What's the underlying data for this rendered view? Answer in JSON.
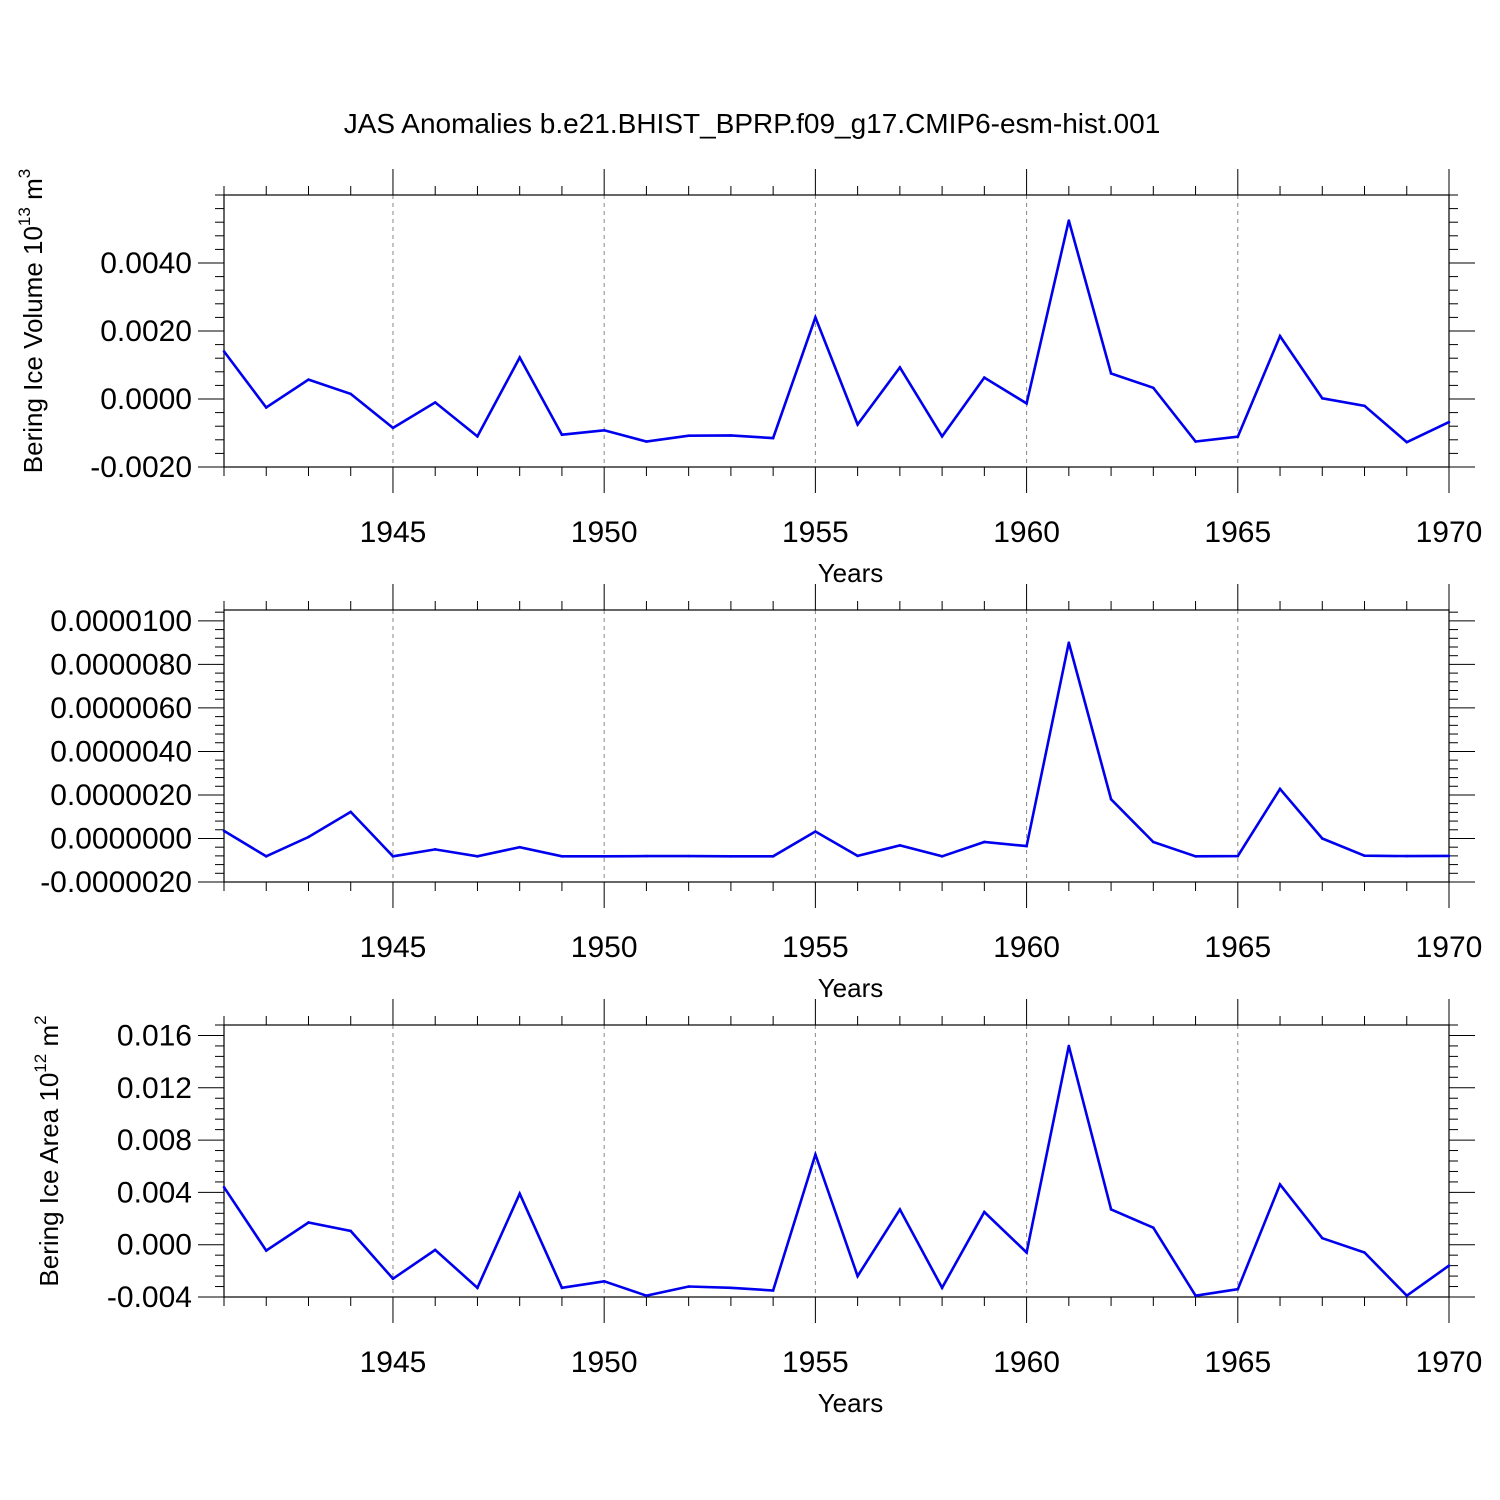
{
  "title": "JAS Anomalies b.e21.BHIST_BPRP.f09_g17.CMIP6-esm-hist.001",
  "colors": {
    "line": "#0000ee",
    "frame": "#000000",
    "grid": "#888888"
  },
  "chart_data": [
    {
      "type": "line",
      "ylabel": "Bering Ice Volume 10",
      "ylabel_exp": "13",
      "ylabel_unit": " m",
      "ylabel_unit_exp": "3",
      "xlabel": "Years",
      "xlim": [
        1941,
        1970
      ],
      "ylim": [
        -0.002,
        0.006
      ],
      "xticks": [
        1945,
        1950,
        1955,
        1960,
        1965,
        1970
      ],
      "xtick_labels": [
        "1945",
        "1950",
        "1955",
        "1960",
        "1965",
        "1970"
      ],
      "yticks": [
        -0.002,
        0.0,
        0.002,
        0.004
      ],
      "ytick_labels": [
        "-0.0020",
        "0.0000",
        "0.0020",
        "0.0040"
      ],
      "x": [
        1941,
        1942,
        1943,
        1944,
        1945,
        1946,
        1947,
        1948,
        1949,
        1950,
        1951,
        1952,
        1953,
        1954,
        1955,
        1956,
        1957,
        1958,
        1959,
        1960,
        1961,
        1962,
        1963,
        1964,
        1965,
        1966,
        1967,
        1968,
        1969,
        1970
      ],
      "values": [
        0.0014,
        -0.00025,
        0.00057,
        0.00015,
        -0.00085,
        -0.0001,
        -0.0011,
        0.00122,
        -0.00105,
        -0.00092,
        -0.00125,
        -0.00108,
        -0.00107,
        -0.00115,
        0.0024,
        -0.00075,
        0.00093,
        -0.0011,
        0.00063,
        -0.00013,
        0.00525,
        0.00075,
        0.00033,
        -0.00125,
        -0.00111,
        0.00185,
        2e-05,
        -0.0002,
        -0.00127,
        -0.00068
      ]
    },
    {
      "type": "line",
      "ylabel": "",
      "xlabel": "Years",
      "xlim": [
        1941,
        1970
      ],
      "ylim": [
        -2e-06,
        1.05e-05
      ],
      "xticks": [
        1945,
        1950,
        1955,
        1960,
        1965,
        1970
      ],
      "xtick_labels": [
        "1945",
        "1950",
        "1955",
        "1960",
        "1965",
        "1970"
      ],
      "yticks": [
        -2e-06,
        0.0,
        2e-06,
        4e-06,
        6e-06,
        8e-06,
        1e-05
      ],
      "ytick_labels": [
        "-0.0000020",
        "0.0000000",
        "0.0000020",
        "0.0000040",
        "0.0000060",
        "0.0000080",
        "0.0000100"
      ],
      "x": [
        1941,
        1942,
        1943,
        1944,
        1945,
        1946,
        1947,
        1948,
        1949,
        1950,
        1951,
        1952,
        1953,
        1954,
        1955,
        1956,
        1957,
        1958,
        1959,
        1960,
        1961,
        1962,
        1963,
        1964,
        1965,
        1966,
        1967,
        1968,
        1969,
        1970
      ],
      "values": [
        3.5e-07,
        -8.2e-07,
        7e-08,
        1.22e-06,
        -8.2e-07,
        -5e-07,
        -8.2e-07,
        -4e-07,
        -8.2e-07,
        -8.2e-07,
        -8.1e-07,
        -8.1e-07,
        -8.2e-07,
        -8.2e-07,
        3.2e-07,
        -8e-07,
        -3.2e-07,
        -8.2e-07,
        -1.6e-07,
        -3.5e-07,
        9e-06,
        1.8e-06,
        -1.6e-07,
        -8.2e-07,
        -8.1e-07,
        2.28e-06,
        0.0,
        -7.9e-07,
        -8.1e-07,
        -8e-07
      ]
    },
    {
      "type": "line",
      "ylabel": "Bering Ice Area 10",
      "ylabel_exp": "12",
      "ylabel_unit": " m",
      "ylabel_unit_exp": "2",
      "xlabel": "Years",
      "xlim": [
        1941,
        1970
      ],
      "ylim": [
        -0.004,
        0.0168
      ],
      "xticks": [
        1945,
        1950,
        1955,
        1960,
        1965,
        1970
      ],
      "xtick_labels": [
        "1945",
        "1950",
        "1955",
        "1960",
        "1965",
        "1970"
      ],
      "yticks": [
        -0.004,
        0.0,
        0.004,
        0.008,
        0.012,
        0.016
      ],
      "ytick_labels": [
        "-0.004",
        "0.000",
        "0.004",
        "0.008",
        "0.012",
        "0.016"
      ],
      "x": [
        1941,
        1942,
        1943,
        1944,
        1945,
        1946,
        1947,
        1948,
        1949,
        1950,
        1951,
        1952,
        1953,
        1954,
        1955,
        1956,
        1957,
        1958,
        1959,
        1960,
        1961,
        1962,
        1963,
        1964,
        1965,
        1966,
        1967,
        1968,
        1969,
        1970
      ],
      "values": [
        0.0044,
        -0.00045,
        0.0017,
        0.00105,
        -0.0026,
        -0.0004,
        -0.0033,
        0.0039,
        -0.0033,
        -0.0028,
        -0.0039,
        -0.0032,
        -0.0033,
        -0.0035,
        0.0069,
        -0.0024,
        0.0027,
        -0.0033,
        0.0025,
        -0.0006,
        0.0152,
        0.0027,
        0.0013,
        -0.0039,
        -0.0034,
        0.0046,
        0.0005,
        -0.0006,
        -0.0039,
        -0.0016
      ]
    }
  ]
}
